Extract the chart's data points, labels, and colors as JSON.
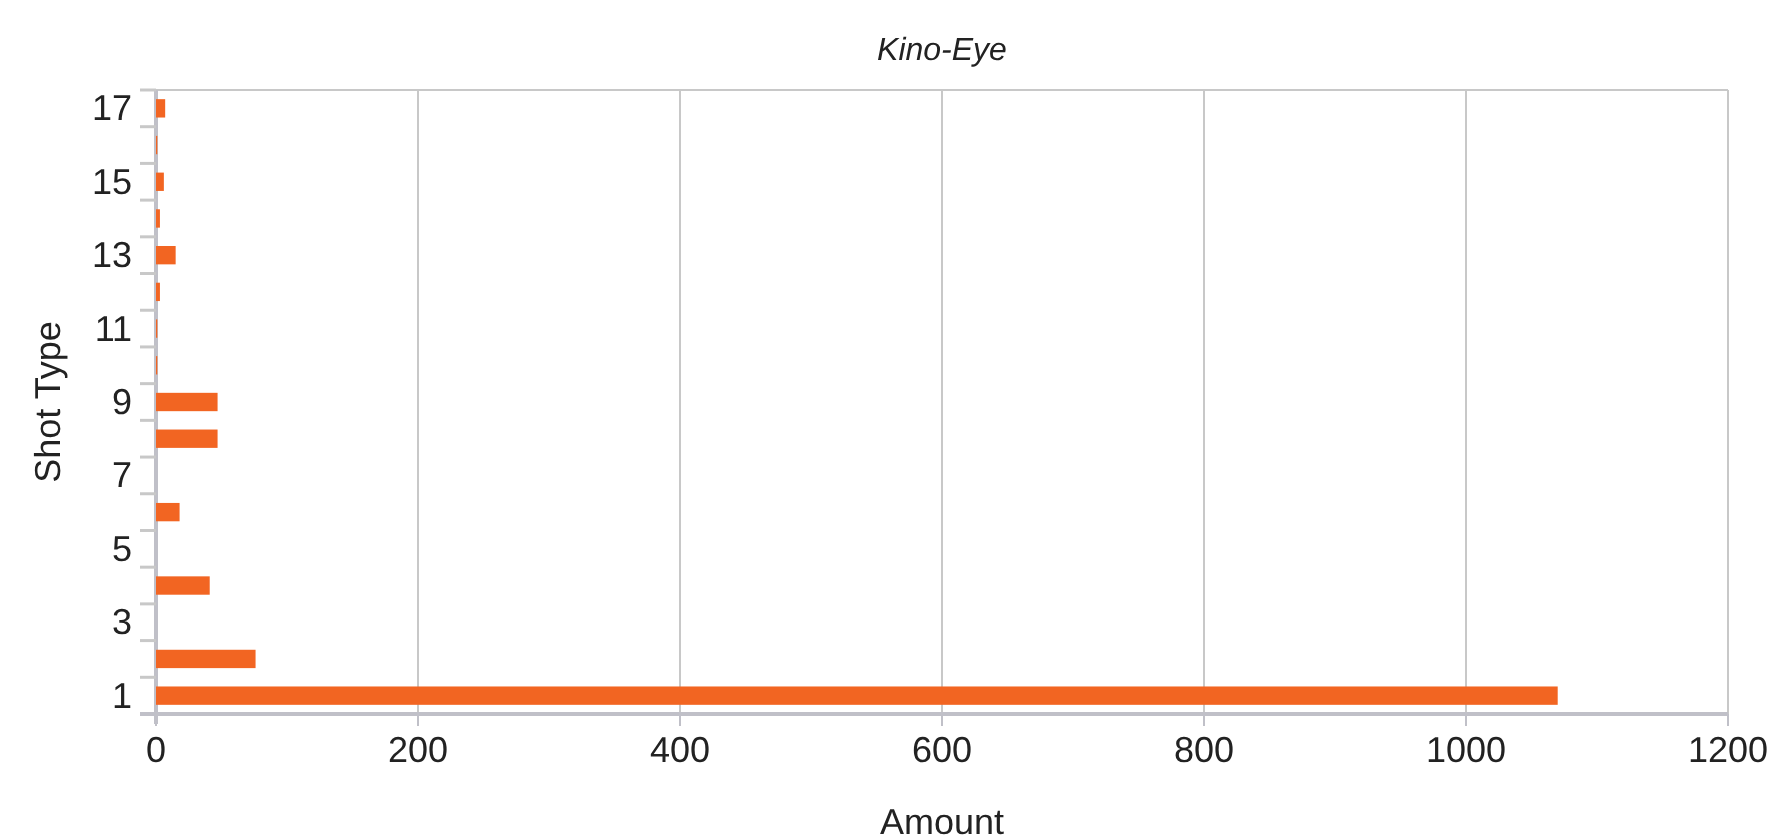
{
  "chart_data": {
    "type": "bar",
    "orientation": "horizontal",
    "title": "Kino-Eye",
    "xlabel": "Amount",
    "ylabel": "Shot Type",
    "categories": [
      "17",
      null,
      "15",
      null,
      "13",
      null,
      "11",
      null,
      "9",
      null,
      "7",
      null,
      "5",
      null,
      "3",
      null,
      "1"
    ],
    "values": [
      7,
      1,
      6,
      3,
      15,
      3,
      1,
      1,
      47,
      47,
      0,
      18,
      0,
      41,
      0,
      76,
      1070
    ],
    "color": "#f26522",
    "xlim": [
      0,
      1200
    ],
    "xticks": [
      0,
      200,
      400,
      600,
      800,
      1000,
      1200
    ],
    "grid": "x"
  }
}
